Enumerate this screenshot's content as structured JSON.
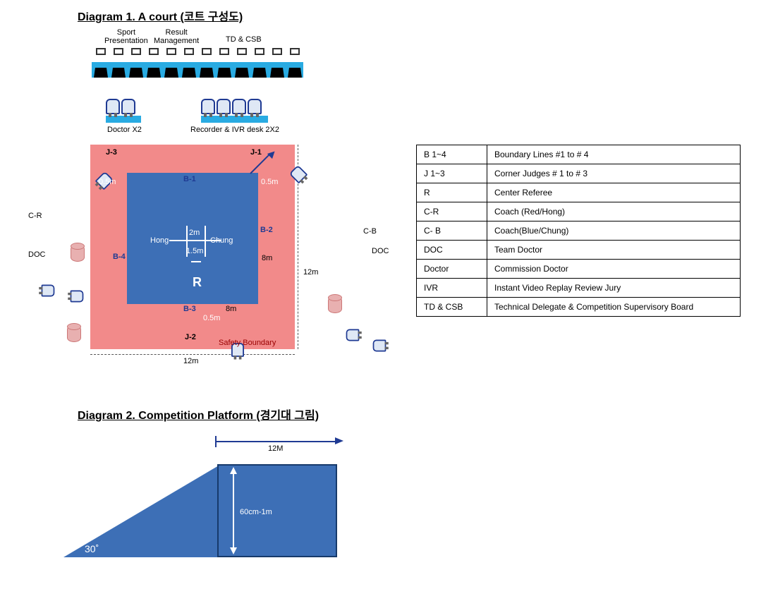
{
  "diagram1": {
    "title": "Diagram 1. A court (코트 구성도)",
    "top_labels": {
      "sport_presentation": "Sport\nPresentation",
      "result_management": "Result\nManagement",
      "td_csb": "TD & CSB"
    },
    "desk_row": {
      "stations": 12,
      "bar_color": "#29abe2"
    },
    "doctor_label": "Doctor X2",
    "recorder_label": "Recorder & IVR desk 2X2",
    "court": {
      "safety_color": "#f28a8a",
      "inner_color": "#3d6fb6",
      "outer_size_m": 12,
      "inner_size_m": 8,
      "margin_m": 0.5,
      "j1": "J-1",
      "j2": "J-2",
      "j3": "J-3",
      "b1": "B-1",
      "b2": "B-2",
      "b3": "B-3",
      "b4": "B-4",
      "hong": "Hong",
      "chung": "Chung",
      "center_2m": "2m",
      "center_1_5m": "1.5m",
      "referee": "R",
      "safety_boundary": "Safety Boundary",
      "dim_8m": "8m",
      "dim_12m_v": "12m",
      "dim_12m_h": "12m",
      "margin_05": "0.5m"
    },
    "left_side": {
      "cr": "C-R",
      "doc": "DOC"
    },
    "right_side": {
      "cb": "C-B",
      "doc": "DOC"
    }
  },
  "legend": {
    "rows": [
      [
        "B 1~4",
        "Boundary Lines #1 to # 4"
      ],
      [
        "J 1~3",
        "Corner Judges # 1 to # 3"
      ],
      [
        "R",
        "Center Referee"
      ],
      [
        "C-R",
        "Coach (Red/Hong)"
      ],
      [
        "C- B",
        "Coach(Blue/Chung)"
      ],
      [
        "DOC",
        "Team Doctor"
      ],
      [
        "Doctor",
        "Commission Doctor"
      ],
      [
        "IVR",
        "Instant Video Replay Review Jury"
      ],
      [
        "TD & CSB",
        "Technical Delegate & Competition Supervisory Board"
      ]
    ]
  },
  "diagram2": {
    "title": "Diagram 2. Competition Platform (경기대 그림)",
    "width_label": "12M",
    "height_label": "60cm-1m",
    "angle_label": "30˚",
    "ramp_color": "#3d6fb6",
    "platform_color": "#3d6fb6",
    "border_color": "#173a6b"
  },
  "colors": {
    "accent_blue": "#29abe2",
    "court_blue": "#3d6fb6",
    "safety_red": "#f28a8a",
    "navy": "#1f3a93"
  }
}
